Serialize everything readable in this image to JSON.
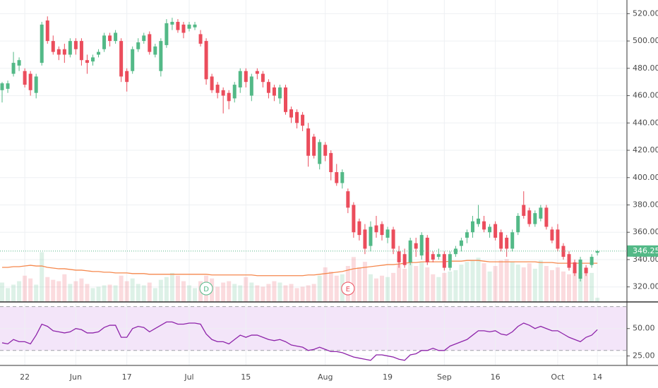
{
  "chart_data": {
    "type": "candlestick",
    "up_color": "#53b987",
    "down_color": "#eb4d5c",
    "ylim": [
      309,
      530
    ],
    "yticks": [
      {
        "value": 320,
        "label": "320.00"
      },
      {
        "value": 340,
        "label": "340.00"
      },
      {
        "value": 360,
        "label": "360.00"
      },
      {
        "value": 380,
        "label": "380.00"
      },
      {
        "value": 400,
        "label": "400.00"
      },
      {
        "value": 420,
        "label": "420.00"
      },
      {
        "value": 440,
        "label": "440.00"
      },
      {
        "value": 460,
        "label": "460.00"
      },
      {
        "value": 480,
        "label": "480.00"
      },
      {
        "value": 500,
        "label": "500.00"
      },
      {
        "value": 520,
        "label": "520.00"
      }
    ],
    "last_price": {
      "value": 346.25,
      "label": "346.25"
    },
    "xticks": [
      {
        "value": 4,
        "label": "22"
      },
      {
        "value": 13,
        "label": "Jun"
      },
      {
        "value": 22,
        "label": "17"
      },
      {
        "value": 33,
        "label": "Jul"
      },
      {
        "value": 43,
        "label": "15"
      },
      {
        "value": 57,
        "label": "Aug"
      },
      {
        "value": 68,
        "label": "19"
      },
      {
        "value": 78,
        "label": "Sep"
      },
      {
        "value": 87,
        "label": "16"
      },
      {
        "value": 98,
        "label": "Oct"
      },
      {
        "value": 105,
        "label": "14"
      }
    ],
    "grid": true,
    "candles": [
      [
        464,
        470,
        455,
        469
      ],
      [
        465,
        471,
        462,
        469
      ],
      [
        476,
        492,
        474,
        484
      ],
      [
        482,
        488,
        478,
        486
      ],
      [
        478,
        480,
        466,
        468
      ],
      [
        476,
        478,
        460,
        464
      ],
      [
        462,
        476,
        458,
        474
      ],
      [
        484,
        514,
        482,
        512
      ],
      [
        515,
        518,
        498,
        500
      ],
      [
        500,
        504,
        490,
        492
      ],
      [
        494,
        496,
        486,
        490
      ],
      [
        494,
        498,
        484,
        490
      ],
      [
        490,
        502,
        488,
        500
      ],
      [
        500,
        502,
        490,
        494
      ],
      [
        500,
        502,
        482,
        486
      ],
      [
        486,
        490,
        476,
        484
      ],
      [
        485,
        490,
        482,
        488
      ],
      [
        490,
        494,
        488,
        492
      ],
      [
        494,
        506,
        492,
        504
      ],
      [
        504,
        506,
        496,
        500
      ],
      [
        500,
        508,
        498,
        506
      ],
      [
        500,
        502,
        470,
        474
      ],
      [
        478,
        480,
        463,
        470
      ],
      [
        478,
        496,
        476,
        494
      ],
      [
        494,
        502,
        492,
        499
      ],
      [
        500,
        506,
        498,
        504
      ],
      [
        505,
        507,
        490,
        492
      ],
      [
        490,
        498,
        488,
        496
      ],
      [
        478,
        502,
        474,
        500
      ],
      [
        497,
        516,
        495,
        513
      ],
      [
        512,
        517,
        508,
        514
      ],
      [
        514,
        516,
        506,
        508
      ],
      [
        512,
        514,
        502,
        506
      ],
      [
        509,
        514,
        507,
        512
      ],
      [
        510,
        514,
        508,
        512
      ],
      [
        505,
        508,
        496,
        498
      ],
      [
        500,
        502,
        468,
        472
      ],
      [
        474,
        476,
        462,
        464
      ],
      [
        468,
        470,
        458,
        462
      ],
      [
        464,
        466,
        447,
        460
      ],
      [
        462,
        464,
        450,
        456
      ],
      [
        458,
        470,
        455,
        468
      ],
      [
        466,
        480,
        462,
        478
      ],
      [
        478,
        480,
        466,
        470
      ],
      [
        460,
        476,
        456,
        474
      ],
      [
        478,
        480,
        472,
        476
      ],
      [
        476,
        478,
        466,
        470
      ],
      [
        470,
        472,
        458,
        462
      ],
      [
        466,
        468,
        456,
        460
      ],
      [
        458,
        468,
        454,
        466
      ],
      [
        466,
        468,
        446,
        448
      ],
      [
        450,
        452,
        440,
        444
      ],
      [
        448,
        450,
        436,
        440
      ],
      [
        446,
        448,
        434,
        438
      ],
      [
        436,
        440,
        408,
        416
      ],
      [
        430,
        432,
        414,
        416
      ],
      [
        410,
        428,
        406,
        426
      ],
      [
        424,
        426,
        412,
        416
      ],
      [
        418,
        420,
        398,
        404
      ],
      [
        404,
        410,
        394,
        396
      ],
      [
        396,
        406,
        392,
        404
      ],
      [
        390,
        392,
        374,
        378
      ],
      [
        380,
        382,
        356,
        360
      ],
      [
        368,
        370,
        354,
        358
      ],
      [
        362,
        366,
        344,
        348
      ],
      [
        350,
        368,
        346,
        364
      ],
      [
        365,
        372,
        356,
        360
      ],
      [
        366,
        368,
        354,
        358
      ],
      [
        356,
        364,
        352,
        362
      ],
      [
        362,
        364,
        344,
        348
      ],
      [
        346,
        350,
        334,
        338
      ],
      [
        344,
        348,
        334,
        336
      ],
      [
        338,
        356,
        336,
        354
      ],
      [
        352,
        356,
        342,
        348
      ],
      [
        343,
        360,
        340,
        358
      ],
      [
        356,
        358,
        336,
        338
      ],
      [
        344,
        346,
        338,
        340
      ],
      [
        342,
        348,
        340,
        344
      ],
      [
        344,
        346,
        332,
        334
      ],
      [
        334,
        346,
        332,
        344
      ],
      [
        344,
        350,
        342,
        348
      ],
      [
        350,
        356,
        346,
        354
      ],
      [
        356,
        362,
        352,
        360
      ],
      [
        360,
        372,
        356,
        368
      ],
      [
        366,
        380,
        364,
        370
      ],
      [
        368,
        372,
        360,
        362
      ],
      [
        360,
        366,
        356,
        364
      ],
      [
        366,
        368,
        354,
        356
      ],
      [
        360,
        362,
        346,
        348
      ],
      [
        356,
        358,
        342,
        348
      ],
      [
        348,
        362,
        346,
        360
      ],
      [
        360,
        374,
        358,
        372
      ],
      [
        380,
        390,
        370,
        372
      ],
      [
        376,
        378,
        364,
        366
      ],
      [
        366,
        376,
        364,
        374
      ],
      [
        370,
        380,
        368,
        378
      ],
      [
        378,
        380,
        362,
        364
      ],
      [
        362,
        364,
        352,
        354
      ],
      [
        362,
        366,
        346,
        348
      ],
      [
        350,
        352,
        340,
        342
      ],
      [
        344,
        346,
        332,
        334
      ],
      [
        338,
        340,
        328,
        330
      ],
      [
        326,
        342,
        324,
        340
      ],
      [
        334,
        336,
        328,
        330
      ],
      [
        336,
        344,
        334,
        342
      ],
      [
        345,
        347,
        343,
        346.25
      ]
    ],
    "volume_lim": [
      0,
      100
    ],
    "volume": [
      28,
      20,
      25,
      30,
      38,
      34,
      25,
      72,
      36,
      32,
      30,
      40,
      26,
      30,
      34,
      26,
      20,
      22,
      24,
      25,
      24,
      38,
      30,
      34,
      26,
      24,
      28,
      20,
      32,
      36,
      42,
      38,
      30,
      24,
      20,
      30,
      38,
      34,
      22,
      28,
      30,
      26,
      24,
      36,
      28,
      24,
      22,
      26,
      30,
      28,
      24,
      26,
      20,
      22,
      24,
      26,
      38,
      50,
      44,
      38,
      40,
      52,
      65,
      50,
      58,
      40,
      34,
      38,
      36,
      42,
      55,
      48,
      60,
      52,
      58,
      50,
      40,
      36,
      42,
      44,
      46,
      54,
      58,
      60,
      64,
      56,
      44,
      52,
      60,
      62,
      58,
      54,
      50,
      56,
      48,
      60,
      52,
      46,
      50,
      44,
      40,
      46,
      42,
      50,
      42,
      6
    ],
    "volume_ma": {
      "color": "#f5884d",
      "values": [
        50,
        50,
        51,
        51,
        52,
        53,
        52,
        52,
        50,
        49,
        48,
        48,
        47,
        46,
        46,
        45,
        44,
        44,
        43,
        43,
        42,
        42,
        42,
        41,
        41,
        41,
        40,
        40,
        40,
        40,
        40,
        40,
        40,
        40,
        40,
        40,
        40,
        39,
        39,
        39,
        39,
        39,
        39,
        39,
        39,
        38,
        38,
        38,
        38,
        38,
        38,
        38,
        38,
        38,
        39,
        39,
        40,
        41,
        42,
        43,
        44,
        46,
        48,
        49,
        50,
        51,
        52,
        53,
        54,
        54,
        55,
        56,
        57,
        57,
        58,
        58,
        58,
        58,
        58,
        59,
        59,
        59,
        60,
        60,
        60,
        59,
        58,
        58,
        58,
        58,
        58,
        58,
        58,
        58,
        58,
        57,
        57,
        57,
        56,
        56,
        56,
        56,
        56,
        56,
        56,
        56
      ]
    },
    "markers": [
      {
        "index": 36,
        "label": "D",
        "color": "#53b987"
      },
      {
        "index": 61,
        "label": "E",
        "color": "#eb4d5c"
      }
    ],
    "rsi": {
      "color": "#8e24aa",
      "band_color": "#f3e5f9",
      "lim": [
        17,
        73
      ],
      "bands": [
        70,
        30
      ],
      "ticks": [
        {
          "value": 50,
          "label": "50.00"
        },
        {
          "value": 25,
          "label": "25.00"
        }
      ],
      "values": [
        37,
        36,
        40,
        38,
        38,
        36,
        44,
        54,
        52,
        48,
        47,
        46,
        47,
        50,
        49,
        46,
        46,
        47,
        51,
        53,
        53,
        42,
        42,
        50,
        52,
        51,
        47,
        50,
        53,
        56,
        56,
        54,
        54,
        55,
        55,
        54,
        45,
        40,
        38,
        38,
        36,
        40,
        44,
        42,
        44,
        44,
        42,
        40,
        39,
        40,
        38,
        35,
        34,
        33,
        30,
        31,
        33,
        31,
        29,
        29,
        28,
        26,
        24,
        23,
        22,
        21,
        26,
        26,
        25,
        24,
        22,
        21,
        26,
        27,
        30,
        30,
        32,
        30,
        30,
        34,
        36,
        38,
        40,
        44,
        48,
        48,
        47,
        48,
        45,
        44,
        47,
        52,
        55,
        53,
        50,
        52,
        50,
        48,
        48,
        45,
        42,
        40,
        38,
        42,
        44,
        49
      ]
    }
  }
}
